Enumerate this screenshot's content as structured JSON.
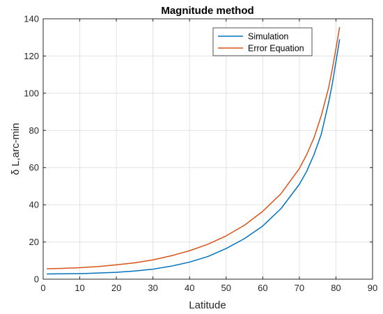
{
  "chart_data": {
    "type": "line",
    "title": "Magnitude method",
    "xlabel": "Latitude",
    "ylabel": "δ L,arc-min",
    "xlim": [
      0,
      90
    ],
    "ylim": [
      0,
      140
    ],
    "xticks": [
      0,
      10,
      20,
      30,
      40,
      50,
      60,
      70,
      80,
      90
    ],
    "yticks": [
      0,
      20,
      40,
      60,
      80,
      100,
      120,
      140
    ],
    "grid": true,
    "legend_position": "top-right",
    "series": [
      {
        "name": "Simulation",
        "color": "#0072BD",
        "x": [
          1,
          5,
          10,
          15,
          20,
          25,
          30,
          35,
          40,
          45,
          50,
          55,
          60,
          65,
          70,
          72,
          74,
          76,
          78,
          79,
          80,
          81
        ],
        "y": [
          2.8,
          2.9,
          3.0,
          3.3,
          3.7,
          4.4,
          5.4,
          7.0,
          9.2,
          12.2,
          16.5,
          21.8,
          28.6,
          38.0,
          51.0,
          58.0,
          67.0,
          78.0,
          95.0,
          105.0,
          117.0,
          129.0
        ]
      },
      {
        "name": "Error Equation",
        "color": "#D95319",
        "x": [
          1,
          5,
          10,
          15,
          20,
          25,
          30,
          35,
          40,
          45,
          50,
          55,
          60,
          65,
          70,
          72,
          74,
          76,
          78,
          79,
          80,
          81
        ],
        "y": [
          5.6,
          5.8,
          6.2,
          6.8,
          7.7,
          8.8,
          10.4,
          12.6,
          15.3,
          18.8,
          23.3,
          29.0,
          36.5,
          46.0,
          59.5,
          67.0,
          76.0,
          88.0,
          103.0,
          113.0,
          124.0,
          135.5
        ]
      }
    ]
  }
}
